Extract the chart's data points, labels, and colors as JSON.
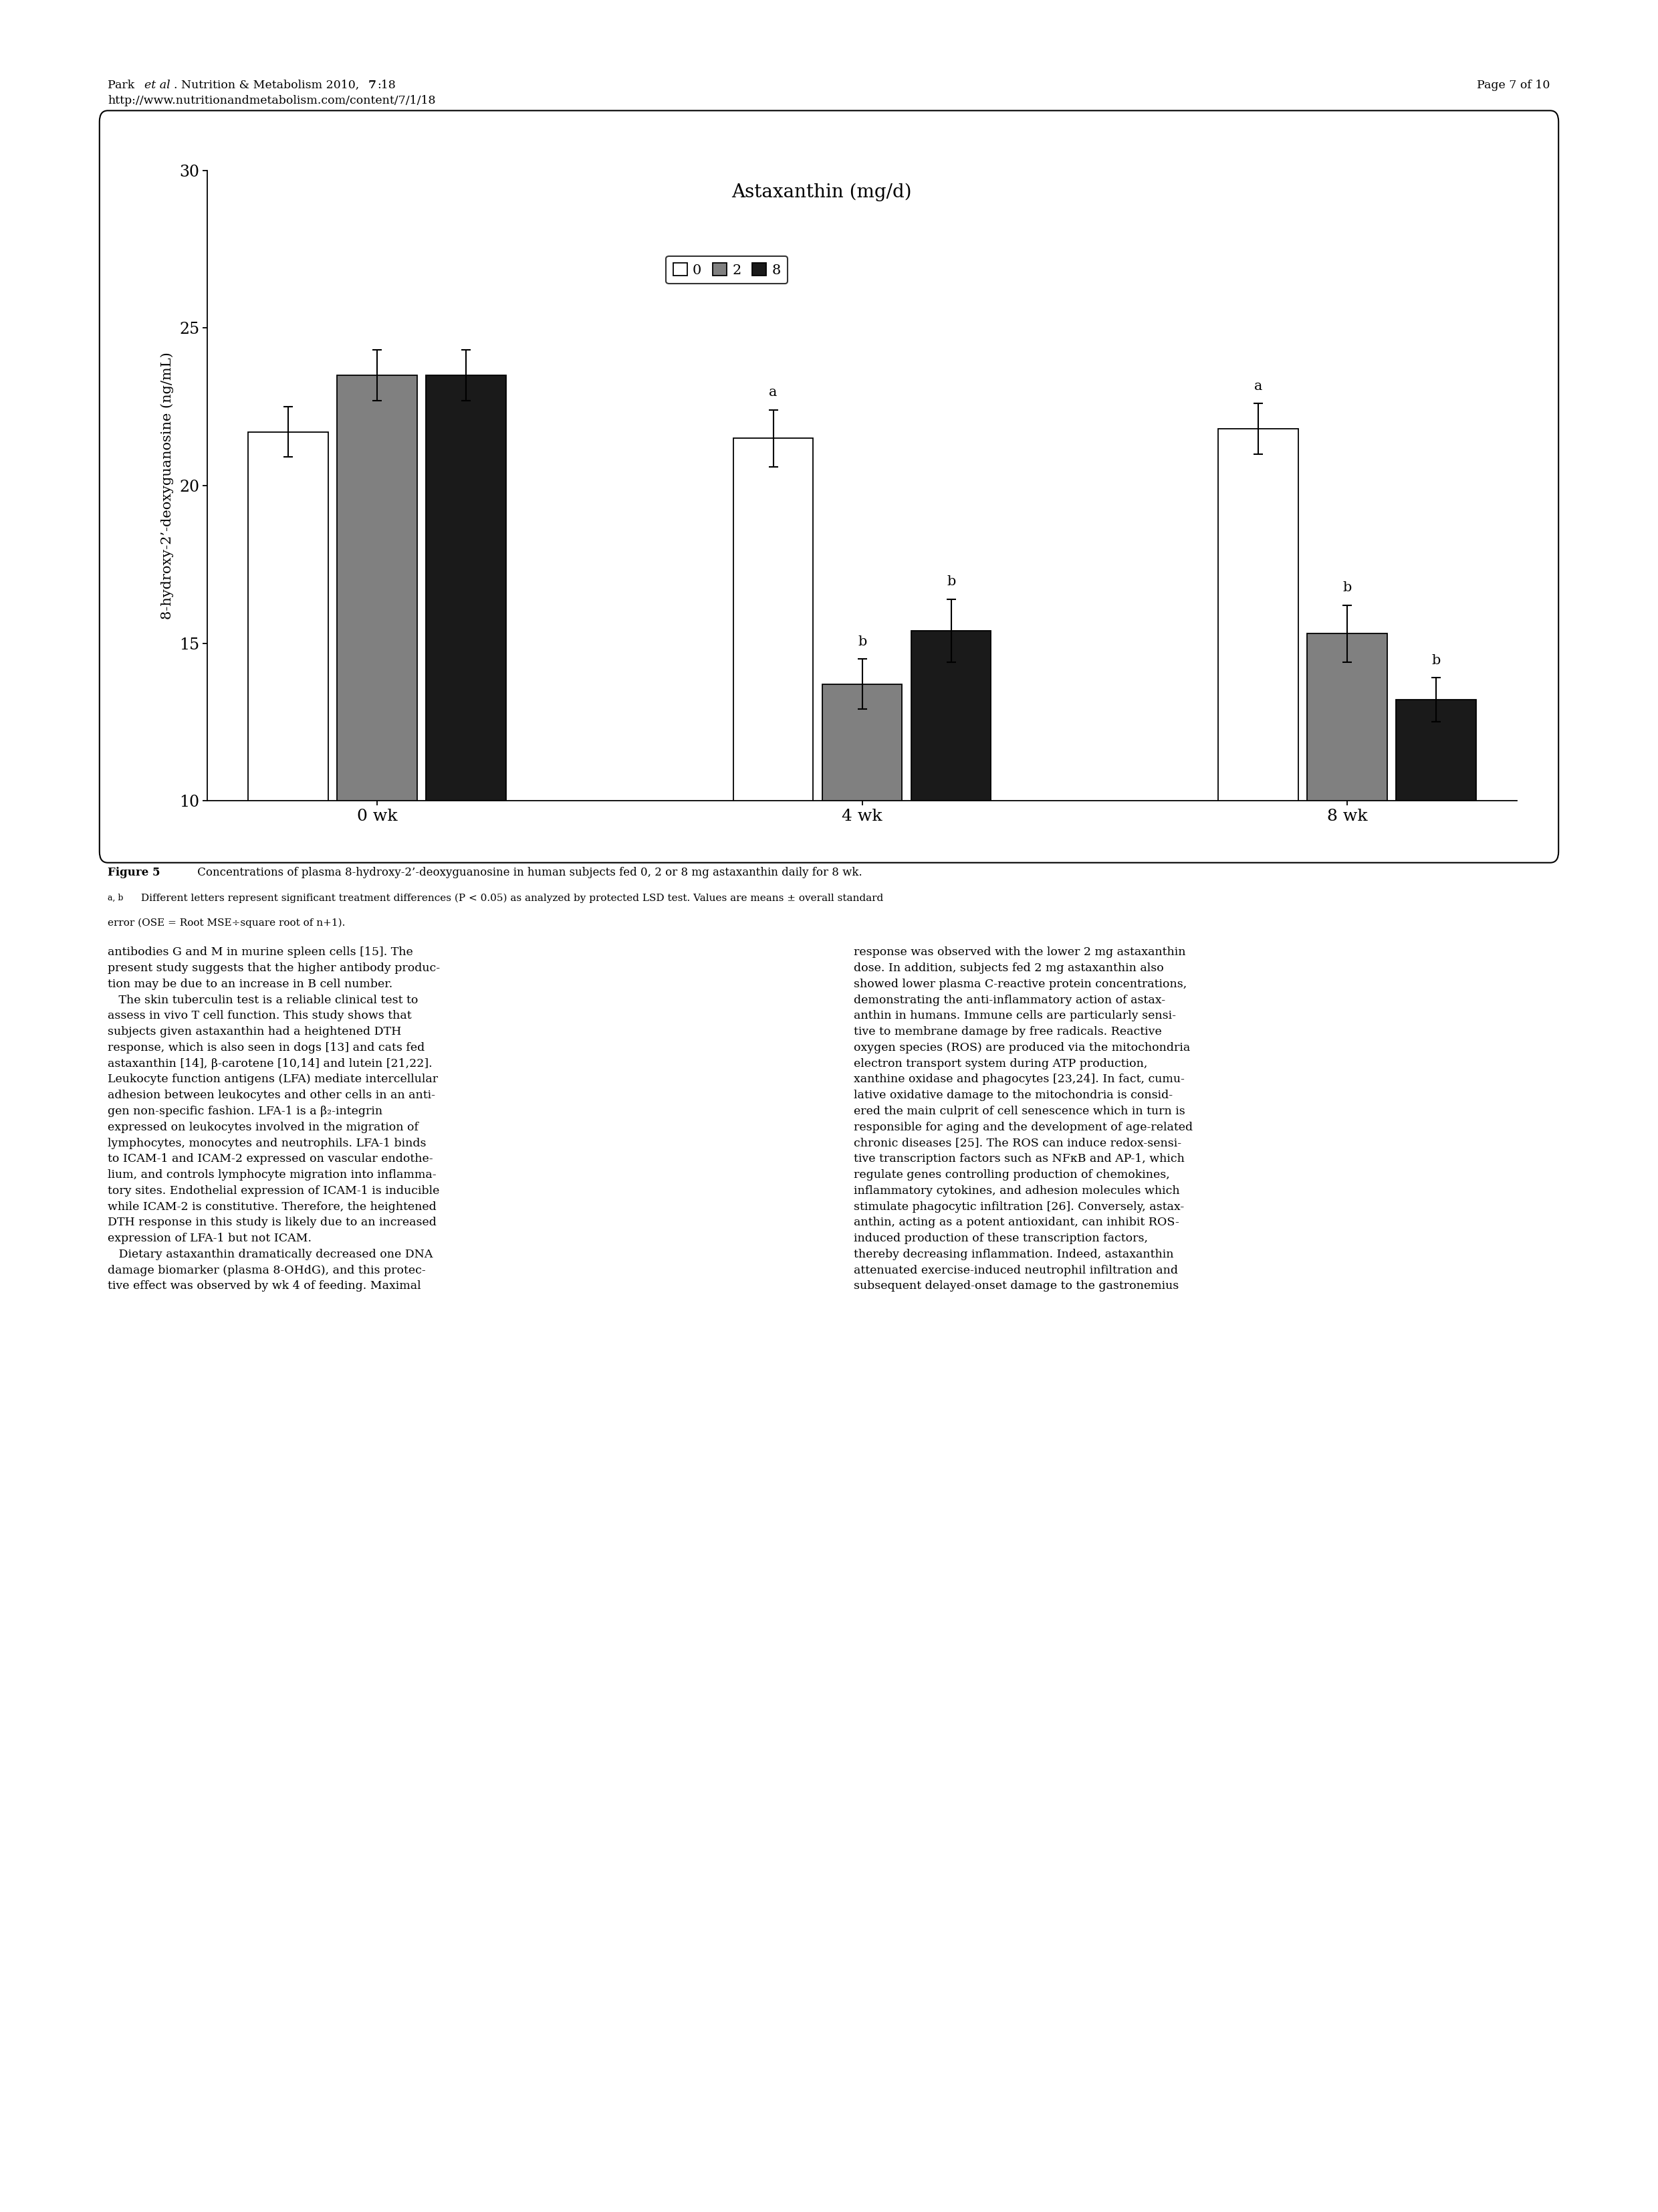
{
  "title": "Astaxanthin (mg/d)",
  "ylabel": "8-hydroxy-2’-deoxyguanosine (ng/mL)",
  "xlabel_groups": [
    "0 wk",
    "4 wk",
    "8 wk"
  ],
  "legend_labels": [
    "0",
    "2",
    "8"
  ],
  "bar_colors": [
    "#ffffff",
    "#808080",
    "#1a1a1a"
  ],
  "bar_edgecolor": "#000000",
  "ylim": [
    10,
    30
  ],
  "yticks": [
    10,
    15,
    20,
    25,
    30
  ],
  "bar_width": 0.22,
  "group_positions": [
    1.0,
    2.2,
    3.4
  ],
  "values": [
    [
      21.7,
      23.5,
      23.5
    ],
    [
      21.5,
      13.7,
      15.4
    ],
    [
      21.8,
      15.3,
      13.2
    ]
  ],
  "errors": [
    [
      0.8,
      0.8,
      0.8
    ],
    [
      0.9,
      0.8,
      1.0
    ],
    [
      0.8,
      0.9,
      0.7
    ]
  ],
  "sig_letters": [
    [
      "",
      "",
      ""
    ],
    [
      "a",
      "b",
      "b"
    ],
    [
      "a",
      "b",
      "b"
    ]
  ],
  "header_line1_normal": "Park ",
  "header_line1_italic": "et al",
  "header_line1_rest": ". Nutrition & Metabolism 2010, ",
  "header_line1_bold": "7",
  "header_line1_end": ":18",
  "header_line2": "http://www.nutritionandmetabolism.com/content/7/1/18",
  "header_right": "Page 7 of 10",
  "figure_caption_bold": "Figure 5",
  "figure_caption_normal": " Concentrations of plasma 8-hydroxy-2’-deoxyguanosine in human subjects fed 0, 2 or 8 mg astaxanthin daily for 8 wk.",
  "figure_caption2": "a, b Different letters represent significant treatment differences (P < 0.05) as analyzed by protected LSD test. Values are means ± overall standard",
  "figure_caption3": "error (OSE = Root MSE÷square root of n+1).",
  "body_text_left": "antibodies G and M in murine spleen cells [15]. The\npresent study suggests that the higher antibody produc-\ntion may be due to an increase in B cell number.\n   The skin tuberculin test is a reliable clinical test to\nassess in vivo T cell function. This study shows that\nsubjects given astaxanthin had a heightened DTH\nresponse, which is also seen in dogs [13] and cats fed\nastaxanthin [14], β-carotene [10,14] and lutein [21,22].\nLeukocyte function antigens (LFA) mediate intercellular\nadhesion between leukocytes and other cells in an anti-\ngen non-specific fashion. LFA-1 is a β₂-integrin\nexpressed on leukocytes involved in the migration of\nlymphocytes, monocytes and neutrophils. LFA-1 binds\nto ICAM-1 and ICAM-2 expressed on vascular endothe-\nlium, and controls lymphocyte migration into inflamma-\ntory sites. Endothelial expression of ICAM-1 is inducible\nwhile ICAM-2 is constitutive. Therefore, the heightened\nDTH response in this study is likely due to an increased\nexpression of LFA-1 but not ICAM.\n   Dietary astaxanthin dramatically decreased one DNA\ndamage biomarker (plasma 8-OHdG), and this protec-\ntive effect was observed by wk 4 of feeding. Maximal",
  "body_text_right": "response was observed with the lower 2 mg astaxanthin\ndose. In addition, subjects fed 2 mg astaxanthin also\nshowed lower plasma C-reactive protein concentrations,\ndemonstrating the anti-inflammatory action of astax-\nanthin in humans. Immune cells are particularly sensi-\ntive to membrane damage by free radicals. Reactive\noxygen species (ROS) are produced via the mitochondria\nelectron transport system during ATP production,\nxanthine oxidase and phagocytes [23,24]. In fact, cumu-\nlative oxidative damage to the mitochondria is consid-\nered the main culprit of cell senescence which in turn is\nresponsible for aging and the development of age-related\nchronic diseases [25]. The ROS can induce redox-sensi-\ntive transcription factors such as NFκB and AP-1, which\nregulate genes controlling production of chemokines,\ninflammatory cytokines, and adhesion molecules which\nstimulate phagocytic infiltration [26]. Conversely, astax-\nanthin, acting as a potent antioxidant, can inhibit ROS-\ninduced production of these transcription factors,\nthereby decreasing inflammation. Indeed, astaxanthin\nattenuated exercise-induced neutrophil infiltration and\nsubsequent delayed-onset damage to the gastronemius"
}
